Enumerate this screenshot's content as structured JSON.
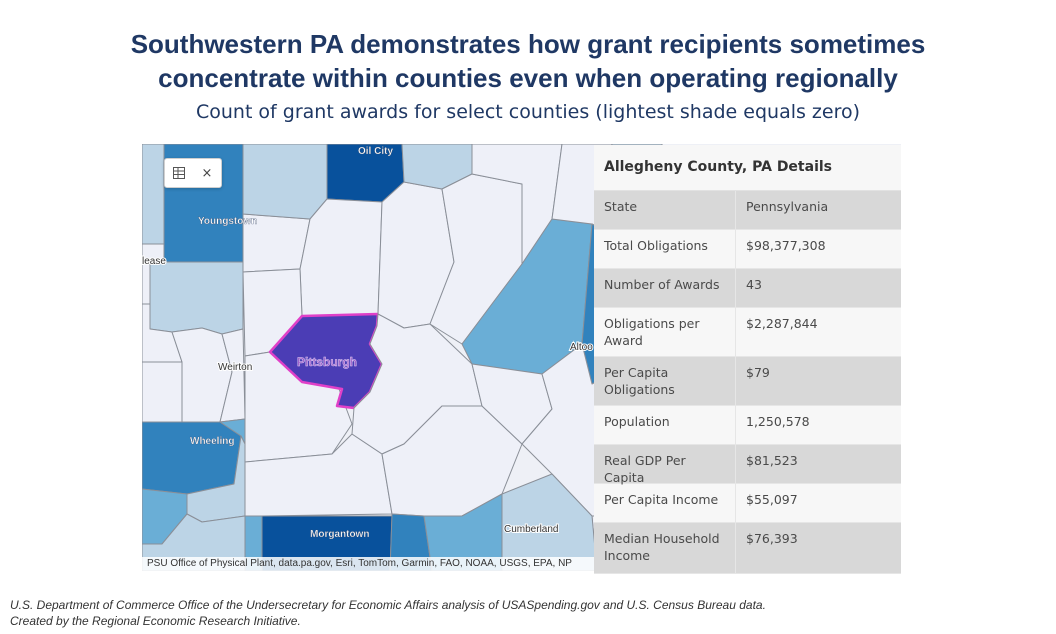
{
  "header": {
    "title_line1": "Southwestern PA demonstrates how grant recipients sometimes",
    "title_line2": "concentrate within counties even when operating regionally",
    "subtitle": "Count of grant awards for select counties (lightest shade equals zero)"
  },
  "map": {
    "colors": {
      "zero": "#eef0f8",
      "light": "#bcd4e6",
      "medium_light": "#6aaed6",
      "medium": "#3182bd",
      "dark": "#08519c",
      "selected": "#4b3db5",
      "selected_outline": "#e040c8"
    },
    "labels": {
      "oil_city": "Oil City",
      "youngstown": "Youngstown",
      "lease": "lease",
      "weirton": "Weirton",
      "wheeling": "Wheeling",
      "pittsburgh": "Pittsburgh",
      "morgantown": "Morgantown",
      "cumberland": "Cumberland",
      "altoona": "Altoo"
    },
    "attribution": "PSU Office of Physical Plant, data.pa.gov, Esri, TomTom, Garmin, FAO, NOAA, USGS, EPA, NP",
    "widget": {
      "layers_icon": "layers-icon",
      "close_icon": "close-icon",
      "close_glyph": "×"
    }
  },
  "panel": {
    "title": "Allegheny County, PA Details",
    "rows": [
      {
        "label": "State",
        "value": "Pennsylvania"
      },
      {
        "label": "Total Obligations",
        "value": "$98,377,308"
      },
      {
        "label": "Number of Awards",
        "value": "43"
      },
      {
        "label": "Obligations per Award",
        "value": "$2,287,844"
      },
      {
        "label": "Per Capita Obligations",
        "value": "$79"
      },
      {
        "label": "Population",
        "value": "1,250,578"
      },
      {
        "label": "Real GDP Per Capita",
        "value": "$81,523"
      },
      {
        "label": "Per Capita Income",
        "value": "$55,097"
      },
      {
        "label": "Median Household Income",
        "value": "$76,393"
      }
    ]
  },
  "footer": {
    "source_line1": "U.S. Department of Commerce Office of the Undersecretary for Economic Affairs analysis of USASpending.gov and U.S. Census Bureau data.",
    "source_line2": "Created by the Regional Economic Research Initiative."
  }
}
